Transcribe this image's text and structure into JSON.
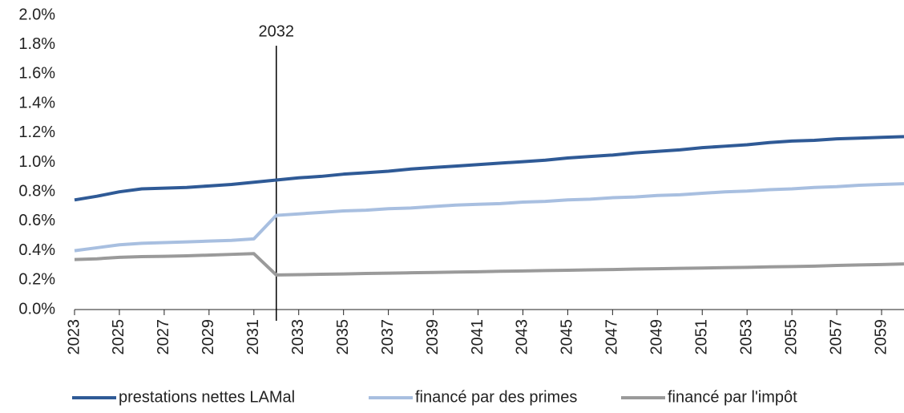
{
  "chart_data": {
    "type": "line",
    "x": [
      2023,
      2024,
      2025,
      2026,
      2027,
      2028,
      2029,
      2030,
      2031,
      2032,
      2033,
      2034,
      2035,
      2036,
      2037,
      2038,
      2039,
      2040,
      2041,
      2042,
      2043,
      2044,
      2045,
      2046,
      2047,
      2048,
      2049,
      2050,
      2051,
      2052,
      2053,
      2054,
      2055,
      2056,
      2057,
      2058,
      2059,
      2060
    ],
    "xlim": [
      2023,
      2060
    ],
    "xticks": [
      2023,
      2025,
      2027,
      2029,
      2031,
      2033,
      2035,
      2037,
      2039,
      2041,
      2043,
      2045,
      2047,
      2049,
      2051,
      2053,
      2055,
      2057,
      2059
    ],
    "ylim": [
      0,
      2
    ],
    "yticks": [
      {
        "value": 0,
        "label": "0.0%"
      },
      {
        "value": 0.2,
        "label": "0.2%"
      },
      {
        "value": 0.4,
        "label": "0.4%"
      },
      {
        "value": 0.6,
        "label": "0.6%"
      },
      {
        "value": 0.8,
        "label": "0.8%"
      },
      {
        "value": 1.0,
        "label": "1.0%"
      },
      {
        "value": 1.2,
        "label": "1.2%"
      },
      {
        "value": 1.4,
        "label": "1.4%"
      },
      {
        "value": 1.6,
        "label": "1.6%"
      },
      {
        "value": 1.8,
        "label": "1.8%"
      },
      {
        "value": 2.0,
        "label": "2.0%"
      }
    ],
    "annotations": [
      {
        "label": "2032",
        "x": 2032
      }
    ],
    "legend": "bottom",
    "series": [
      {
        "name": "prestations nettes LAMal",
        "color": "#2f5a96",
        "values": [
          0.745,
          0.77,
          0.8,
          0.82,
          0.825,
          0.83,
          0.84,
          0.85,
          0.865,
          0.88,
          0.895,
          0.905,
          0.92,
          0.93,
          0.94,
          0.955,
          0.965,
          0.975,
          0.985,
          0.995,
          1.005,
          1.015,
          1.03,
          1.04,
          1.05,
          1.065,
          1.075,
          1.085,
          1.1,
          1.11,
          1.12,
          1.135,
          1.145,
          1.15,
          1.16,
          1.165,
          1.17,
          1.175
        ]
      },
      {
        "name": "financé par des primes",
        "color": "#a8bfe0",
        "values": [
          0.4,
          0.42,
          0.44,
          0.45,
          0.455,
          0.46,
          0.465,
          0.47,
          0.48,
          0.64,
          0.65,
          0.66,
          0.67,
          0.675,
          0.685,
          0.69,
          0.7,
          0.71,
          0.715,
          0.72,
          0.73,
          0.735,
          0.745,
          0.75,
          0.76,
          0.765,
          0.775,
          0.78,
          0.79,
          0.8,
          0.805,
          0.815,
          0.82,
          0.83,
          0.835,
          0.845,
          0.85,
          0.855
        ]
      },
      {
        "name": "financé par l'impôt",
        "color": "#9a9a9a",
        "values": [
          0.34,
          0.345,
          0.355,
          0.36,
          0.362,
          0.365,
          0.37,
          0.375,
          0.38,
          0.235,
          0.237,
          0.24,
          0.242,
          0.245,
          0.247,
          0.25,
          0.252,
          0.255,
          0.257,
          0.26,
          0.262,
          0.265,
          0.267,
          0.27,
          0.272,
          0.275,
          0.277,
          0.28,
          0.282,
          0.285,
          0.287,
          0.29,
          0.292,
          0.295,
          0.3,
          0.303,
          0.306,
          0.31
        ]
      }
    ]
  }
}
